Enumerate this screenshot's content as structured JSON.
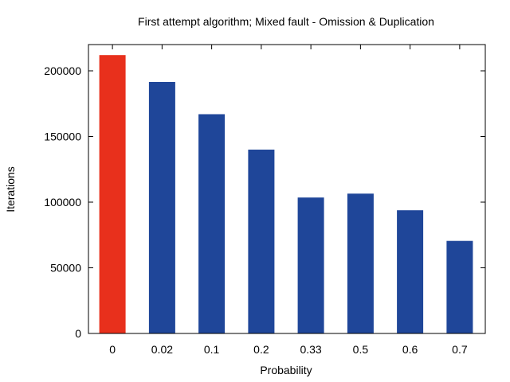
{
  "chart_data": {
    "type": "bar",
    "title": "First attempt algorithm; Mixed fault - Omission & Duplication",
    "xlabel": "Probability",
    "ylabel": "Iterations",
    "categories": [
      "0",
      "0.02",
      "0.1",
      "0.2",
      "0.33",
      "0.5",
      "0.6",
      "0.7"
    ],
    "values": [
      212000,
      191500,
      167000,
      140000,
      103500,
      106500,
      93800,
      70500
    ],
    "bar_colors": [
      "#e8301c",
      "#1f4699",
      "#1f4699",
      "#1f4699",
      "#1f4699",
      "#1f4699",
      "#1f4699",
      "#1f4699"
    ],
    "ylim": [
      0,
      220000
    ],
    "yticks": [
      0,
      50000,
      100000,
      150000,
      200000
    ],
    "ytick_labels": [
      "0",
      "50000",
      "100000",
      "150000",
      "200000"
    ],
    "grid": false,
    "legend": "none"
  }
}
